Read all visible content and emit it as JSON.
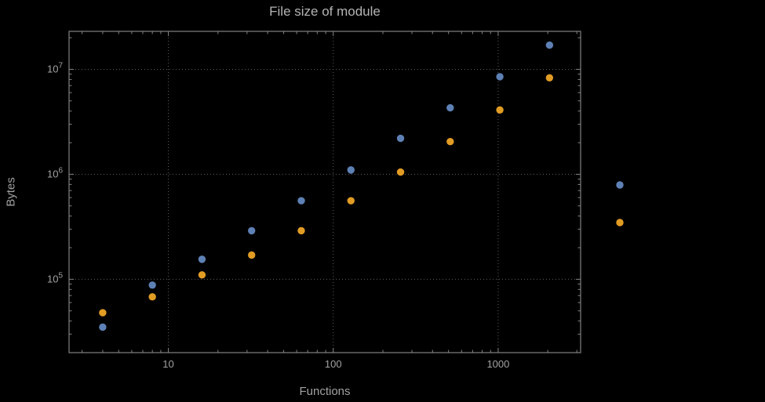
{
  "chart_data": {
    "type": "scatter",
    "title": "File size of module",
    "xlabel": "Functions",
    "ylabel": "Bytes",
    "x_scale": "log",
    "y_scale": "log",
    "xlim": [
      2.5,
      3162
    ],
    "ylim": [
      20000,
      23000000
    ],
    "x_ticks": [
      10,
      100,
      1000
    ],
    "y_ticks": [
      100000,
      1000000,
      10000000
    ],
    "grid": "dotted",
    "series": [
      {
        "color": "#5E81B5",
        "x": [
          4,
          8,
          16,
          32,
          64,
          128,
          256,
          512,
          1024,
          2048
        ],
        "values": [
          35000,
          88000,
          155000,
          290000,
          560000,
          1100000,
          2200000,
          4300000,
          8500000,
          17000000
        ]
      },
      {
        "color": "#E19C24",
        "x": [
          4,
          8,
          16,
          32,
          64,
          128,
          256,
          512,
          1024,
          2048
        ],
        "values": [
          48000,
          68000,
          110000,
          170000,
          290000,
          560000,
          1050000,
          2050000,
          4100000,
          8300000
        ]
      }
    ],
    "legend": {
      "position": "right-of-plot",
      "markers": [
        {
          "color": "#5E81B5"
        },
        {
          "color": "#E19C24"
        }
      ]
    }
  },
  "colors": {
    "background": "#000000",
    "frame": "#828282",
    "grid": "#5e5e5e",
    "text": "#a2a2a2",
    "title": "#b4b4b4"
  }
}
